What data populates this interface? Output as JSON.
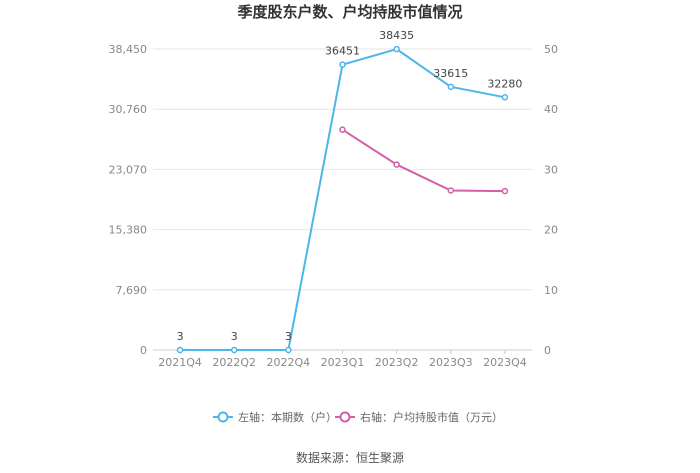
{
  "chart_data": {
    "type": "line",
    "title": "季度股东户数、户均持股市值情况",
    "categories": [
      "2021Q4",
      "2022Q2",
      "2022Q4",
      "2023Q1",
      "2023Q2",
      "2023Q3",
      "2023Q4"
    ],
    "y_left": {
      "ylim": [
        0,
        38450
      ],
      "ticks": [
        "0",
        "7,690",
        "15,380",
        "23,070",
        "30,760",
        "38,450"
      ]
    },
    "y_right": {
      "ylim": [
        0,
        50
      ],
      "ticks": [
        "0",
        "10",
        "20",
        "30",
        "40",
        "50"
      ]
    },
    "series": [
      {
        "name": "左轴：本期数（户）",
        "axis": "left",
        "color": "#4db6e8",
        "values": [
          3,
          3,
          3,
          36451,
          38435,
          33615,
          32280
        ],
        "labels": [
          "3",
          "3",
          "3",
          "36451",
          "38435",
          "33615",
          "32280"
        ]
      },
      {
        "name": "右轴：户均持股市值（万元）",
        "axis": "right",
        "color": "#d45fa8",
        "values": [
          null,
          null,
          null,
          36.6,
          30.8,
          26.5,
          26.4
        ]
      }
    ],
    "grid": true,
    "legend_position": "bottom"
  },
  "source_text": "数据来源：恒生聚源"
}
